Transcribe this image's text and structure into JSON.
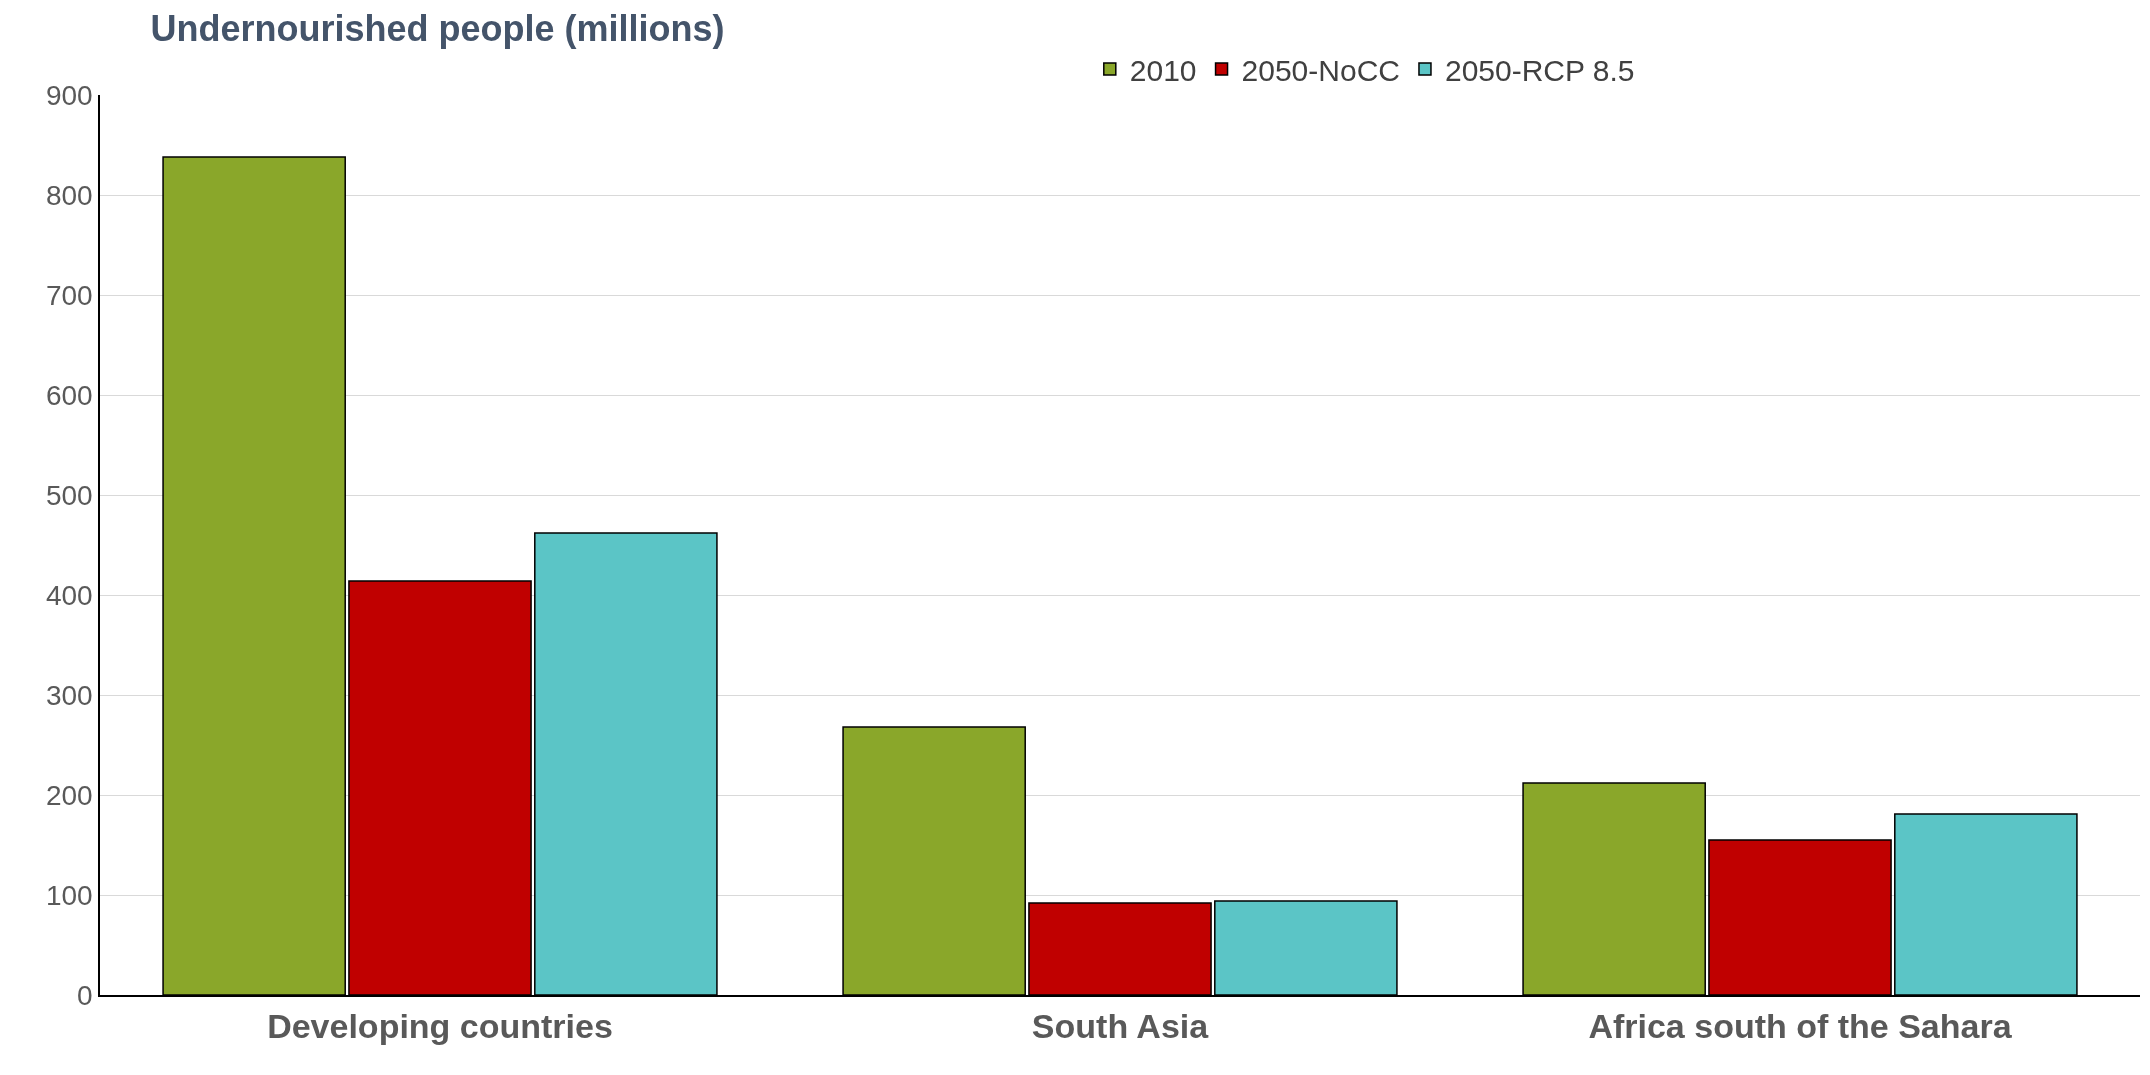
{
  "chart_data": {
    "type": "bar",
    "title": "Undernourished people (millions)",
    "categories": [
      "Developing countries",
      "South Asia",
      "Africa south of the Sahara"
    ],
    "series": [
      {
        "name": "2010",
        "color": "#8aa72a",
        "values": [
          838,
          268,
          212
        ]
      },
      {
        "name": "2050-NoCC",
        "color": "#c00000",
        "values": [
          414,
          92,
          155
        ]
      },
      {
        "name": "2050-RCP 8.5",
        "color": "#5bc5c6",
        "values": [
          462,
          94,
          181
        ]
      }
    ],
    "ylim": [
      0,
      900
    ],
    "yticks": [
      0,
      100,
      200,
      300,
      400,
      500,
      600,
      700,
      800,
      900
    ],
    "grid": "y",
    "legend": "top"
  }
}
